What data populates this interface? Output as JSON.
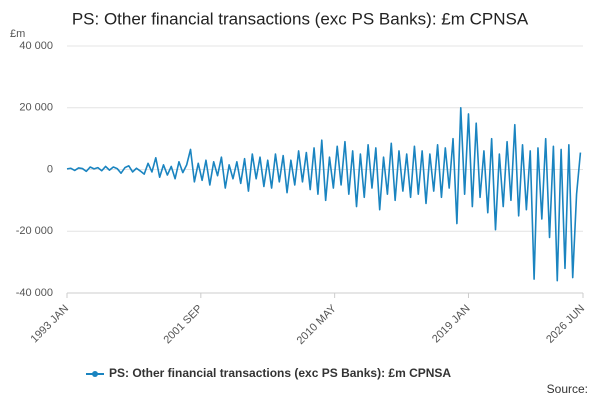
{
  "chart_data": {
    "type": "line",
    "title": "PS: Other financial transactions (exc PS Banks): £m CPNSA",
    "y_unit": "£m",
    "source": "Source:",
    "xlim": [
      "1993 JAN",
      "2026 JUN"
    ],
    "xticks": [
      "1993 JAN",
      "2001 SEP",
      "2010 MAY",
      "2019 JAN",
      "2026 JUN"
    ],
    "ylim": [
      -40000,
      40000
    ],
    "yticks": [
      {
        "value": -40000,
        "label": "-40 000"
      },
      {
        "value": -20000,
        "label": "-20 000"
      },
      0,
      {
        "value": 20000,
        "label": "20 000"
      },
      {
        "value": 40000,
        "label": "40 000"
      }
    ],
    "grid": true,
    "x": [
      "1993 JAN",
      "1993 APR",
      "1993 JUL",
      "1993 OCT",
      "1994 JAN",
      "1994 APR",
      "1994 JUL",
      "1994 OCT",
      "1995 JAN",
      "1995 APR",
      "1995 JUL",
      "1995 OCT",
      "1996 JAN",
      "1996 APR",
      "1996 JUL",
      "1996 OCT",
      "1997 JAN",
      "1997 APR",
      "1997 JUL",
      "1997 OCT",
      "1998 JAN",
      "1998 APR",
      "1998 JUL",
      "1998 OCT",
      "1999 JAN",
      "1999 APR",
      "1999 JUL",
      "1999 OCT",
      "2000 JAN",
      "2000 APR",
      "2000 JUL",
      "2000 OCT",
      "2001 JAN",
      "2001 APR",
      "2001 JUL",
      "2001 OCT",
      "2002 JAN",
      "2002 APR",
      "2002 JUL",
      "2002 OCT",
      "2003 JAN",
      "2003 APR",
      "2003 JUL",
      "2003 OCT",
      "2004 JAN",
      "2004 APR",
      "2004 JUL",
      "2004 OCT",
      "2005 JAN",
      "2005 APR",
      "2005 JUL",
      "2005 OCT",
      "2006 JAN",
      "2006 APR",
      "2006 JUL",
      "2006 OCT",
      "2007 JAN",
      "2007 APR",
      "2007 JUL",
      "2007 OCT",
      "2008 JAN",
      "2008 APR",
      "2008 JUL",
      "2008 OCT",
      "2009 JAN",
      "2009 APR",
      "2009 JUL",
      "2009 OCT",
      "2010 JAN",
      "2010 APR",
      "2010 JUL",
      "2010 OCT",
      "2011 JAN",
      "2011 APR",
      "2011 JUL",
      "2011 OCT",
      "2012 JAN",
      "2012 APR",
      "2012 JUL",
      "2012 OCT",
      "2013 JAN",
      "2013 APR",
      "2013 JUL",
      "2013 OCT",
      "2014 JAN",
      "2014 APR",
      "2014 JUL",
      "2014 OCT",
      "2015 JAN",
      "2015 APR",
      "2015 JUL",
      "2015 OCT",
      "2016 JAN",
      "2016 APR",
      "2016 JUL",
      "2016 OCT",
      "2017 JAN",
      "2017 APR",
      "2017 JUL",
      "2017 OCT",
      "2018 JAN",
      "2018 APR",
      "2018 JUL",
      "2018 OCT",
      "2019 JAN",
      "2019 APR",
      "2019 JUL",
      "2019 OCT",
      "2020 JAN",
      "2020 APR",
      "2020 JUL",
      "2020 OCT",
      "2021 JAN",
      "2021 APR",
      "2021 JUL",
      "2021 OCT",
      "2022 JAN",
      "2022 APR",
      "2022 JUL",
      "2022 OCT",
      "2023 JAN",
      "2023 APR",
      "2023 JUL",
      "2023 OCT",
      "2024 JAN",
      "2024 APR",
      "2024 JUL",
      "2024 OCT",
      "2025 JAN",
      "2025 APR",
      "2025 JUL",
      "2025 OCT",
      "2026 JAN",
      "2026 APR"
    ],
    "series": [
      {
        "name": "PS: Other financial transactions (exc PS Banks): £m CPNSA",
        "color": "#1a84c0",
        "values": [
          200,
          400,
          -300,
          500,
          300,
          -600,
          800,
          200,
          600,
          -400,
          1000,
          -200,
          800,
          300,
          -1200,
          600,
          1200,
          -800,
          400,
          -500,
          -1500,
          2000,
          -800,
          3800,
          -2500,
          1500,
          -1800,
          1000,
          -3000,
          2500,
          -1000,
          1500,
          6500,
          -4000,
          2000,
          -3500,
          3000,
          -5000,
          2500,
          -2000,
          4000,
          -6000,
          1500,
          -3000,
          2500,
          -4500,
          3500,
          -7000,
          5000,
          -3000,
          4000,
          -5500,
          3000,
          -6000,
          5000,
          -4000,
          4500,
          -7500,
          3000,
          -5000,
          6000,
          -4000,
          5500,
          -6500,
          7000,
          -8000,
          9500,
          -10000,
          4000,
          -6000,
          7500,
          -5000,
          9000,
          -8000,
          6000,
          -12000,
          5000,
          -9000,
          8000,
          -6000,
          7000,
          -13000,
          4000,
          -8000,
          8500,
          -10000,
          6000,
          -7000,
          5000,
          -9000,
          7500,
          -8000,
          6000,
          -11000,
          5000,
          -7000,
          8000,
          -9000,
          7000,
          -6000,
          10000,
          -17500,
          20000,
          -8000,
          18000,
          -12000,
          15000,
          -9000,
          6000,
          -14000,
          10000,
          -19500,
          5000,
          -12000,
          9000,
          -10000,
          14500,
          -15000,
          8000,
          -13000,
          6000,
          -35500,
          7000,
          -16000,
          10000,
          -22000,
          7500,
          -36000,
          6500,
          -32000,
          8000,
          -35000,
          -8000,
          5500
        ]
      }
    ]
  }
}
